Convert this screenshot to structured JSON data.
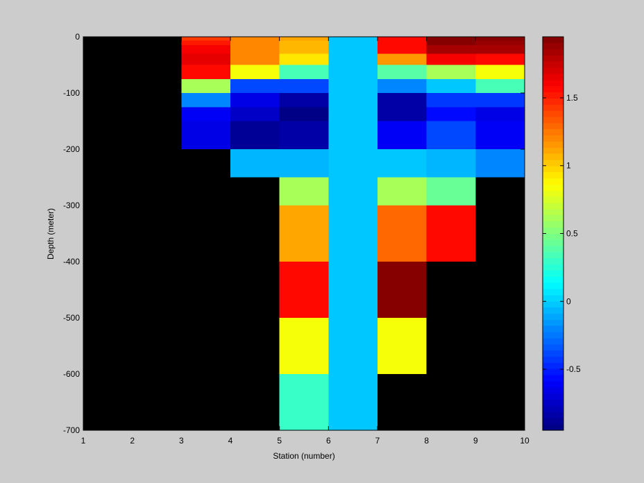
{
  "chart_data": {
    "type": "heatmap",
    "title": "",
    "xlabel": "Station (number)",
    "ylabel": "Depth (meter)",
    "xlim": [
      1,
      10
    ],
    "ylim": [
      -700,
      0
    ],
    "x_ticks": [
      1,
      2,
      3,
      4,
      5,
      6,
      7,
      8,
      9,
      10
    ],
    "y_ticks": [
      0,
      -100,
      -200,
      -300,
      -400,
      -500,
      -600,
      -700
    ],
    "background_no_data": "#000000",
    "colorbar": {
      "colormap": "jet",
      "clim": [
        -0.95,
        1.95
      ],
      "ticks": [
        -0.5,
        0,
        0.5,
        1,
        1.5
      ],
      "levels": 64
    },
    "cells": [
      {
        "x": [
          3,
          4
        ],
        "y": [
          0,
          -7
        ],
        "value": 1.45
      },
      {
        "x": [
          3,
          4
        ],
        "y": [
          -7,
          -15
        ],
        "value": 1.5
      },
      {
        "x": [
          3,
          4
        ],
        "y": [
          -15,
          -30
        ],
        "value": 1.6
      },
      {
        "x": [
          3,
          4
        ],
        "y": [
          -30,
          -50
        ],
        "value": 1.65
      },
      {
        "x": [
          3,
          4
        ],
        "y": [
          -50,
          -75
        ],
        "value": 1.55
      },
      {
        "x": [
          3,
          4
        ],
        "y": [
          -75,
          -100
        ],
        "value": 0.6
      },
      {
        "x": [
          3,
          4
        ],
        "y": [
          -100,
          -125
        ],
        "value": -0.2
      },
      {
        "x": [
          3,
          4
        ],
        "y": [
          -125,
          -150
        ],
        "value": -0.6
      },
      {
        "x": [
          3,
          4
        ],
        "y": [
          -150,
          -200
        ],
        "value": -0.65
      },
      {
        "x": [
          4,
          5
        ],
        "y": [
          0,
          -50
        ],
        "value": 1.2
      },
      {
        "x": [
          4,
          5
        ],
        "y": [
          -50,
          -75
        ],
        "value": 0.85
      },
      {
        "x": [
          4,
          5
        ],
        "y": [
          -75,
          -100
        ],
        "value": -0.4
      },
      {
        "x": [
          4,
          5
        ],
        "y": [
          -100,
          -125
        ],
        "value": -0.65
      },
      {
        "x": [
          4,
          5
        ],
        "y": [
          -125,
          -150
        ],
        "value": -0.75
      },
      {
        "x": [
          4,
          5
        ],
        "y": [
          -150,
          -200
        ],
        "value": -0.88
      },
      {
        "x": [
          4,
          5
        ],
        "y": [
          -200,
          -250
        ],
        "value": -0.05
      },
      {
        "x": [
          5,
          6
        ],
        "y": [
          0,
          -7
        ],
        "value": 1.1
      },
      {
        "x": [
          5,
          6
        ],
        "y": [
          -7,
          -15
        ],
        "value": 1.05
      },
      {
        "x": [
          5,
          6
        ],
        "y": [
          -15,
          -30
        ],
        "value": 1.05
      },
      {
        "x": [
          5,
          6
        ],
        "y": [
          -30,
          -50
        ],
        "value": 0.95
      },
      {
        "x": [
          5,
          6
        ],
        "y": [
          -50,
          -75
        ],
        "value": 0.35
      },
      {
        "x": [
          5,
          6
        ],
        "y": [
          -75,
          -100
        ],
        "value": -0.4
      },
      {
        "x": [
          5,
          6
        ],
        "y": [
          -100,
          -125
        ],
        "value": -0.83
      },
      {
        "x": [
          5,
          6
        ],
        "y": [
          -125,
          -150
        ],
        "value": -0.95
      },
      {
        "x": [
          5,
          6
        ],
        "y": [
          -150,
          -200
        ],
        "value": -0.85
      },
      {
        "x": [
          5,
          6
        ],
        "y": [
          -200,
          -250
        ],
        "value": -0.05
      },
      {
        "x": [
          5,
          6
        ],
        "y": [
          -250,
          -300
        ],
        "value": 0.6
      },
      {
        "x": [
          5,
          6
        ],
        "y": [
          -300,
          -400
        ],
        "value": 1.1
      },
      {
        "x": [
          5,
          6
        ],
        "y": [
          -400,
          -500
        ],
        "value": 1.55
      },
      {
        "x": [
          5,
          6
        ],
        "y": [
          -500,
          -600
        ],
        "value": 0.85
      },
      {
        "x": [
          5,
          6
        ],
        "y": [
          -600,
          -700
        ],
        "value": 0.3
      },
      {
        "x": [
          6,
          7
        ],
        "y": [
          0,
          -700
        ],
        "value": 0.0
      },
      {
        "x": [
          7,
          8
        ],
        "y": [
          0,
          -7
        ],
        "value": 1.55
      },
      {
        "x": [
          7,
          8
        ],
        "y": [
          -7,
          -15
        ],
        "value": 1.55
      },
      {
        "x": [
          7,
          8
        ],
        "y": [
          -15,
          -30
        ],
        "value": 1.55
      },
      {
        "x": [
          7,
          8
        ],
        "y": [
          -30,
          -50
        ],
        "value": 1.15
      },
      {
        "x": [
          7,
          8
        ],
        "y": [
          -50,
          -75
        ],
        "value": 0.4
      },
      {
        "x": [
          7,
          8
        ],
        "y": [
          -75,
          -100
        ],
        "value": -0.2
      },
      {
        "x": [
          7,
          8
        ],
        "y": [
          -100,
          -150
        ],
        "value": -0.82
      },
      {
        "x": [
          7,
          8
        ],
        "y": [
          -150,
          -200
        ],
        "value": -0.62
      },
      {
        "x": [
          7,
          8
        ],
        "y": [
          -200,
          -250
        ],
        "value": 0.0
      },
      {
        "x": [
          7,
          8
        ],
        "y": [
          -250,
          -300
        ],
        "value": 0.6
      },
      {
        "x": [
          7,
          8
        ],
        "y": [
          -300,
          -400
        ],
        "value": 1.3
      },
      {
        "x": [
          7,
          8
        ],
        "y": [
          -400,
          -500
        ],
        "value": 1.95
      },
      {
        "x": [
          7,
          8
        ],
        "y": [
          -500,
          -600
        ],
        "value": 0.85
      },
      {
        "x": [
          8,
          9
        ],
        "y": [
          0,
          -7
        ],
        "value": 1.95
      },
      {
        "x": [
          8,
          9
        ],
        "y": [
          -7,
          -15
        ],
        "value": 1.92
      },
      {
        "x": [
          8,
          9
        ],
        "y": [
          -15,
          -30
        ],
        "value": 1.85
      },
      {
        "x": [
          8,
          9
        ],
        "y": [
          -30,
          -50
        ],
        "value": 1.6
      },
      {
        "x": [
          8,
          9
        ],
        "y": [
          -50,
          -75
        ],
        "value": 0.6
      },
      {
        "x": [
          8,
          9
        ],
        "y": [
          -75,
          -100
        ],
        "value": 0.0
      },
      {
        "x": [
          8,
          9
        ],
        "y": [
          -100,
          -125
        ],
        "value": -0.45
      },
      {
        "x": [
          8,
          9
        ],
        "y": [
          -125,
          -150
        ],
        "value": -0.55
      },
      {
        "x": [
          8,
          9
        ],
        "y": [
          -150,
          -200
        ],
        "value": -0.4
      },
      {
        "x": [
          8,
          9
        ],
        "y": [
          -200,
          -250
        ],
        "value": -0.05
      },
      {
        "x": [
          8,
          9
        ],
        "y": [
          -250,
          -300
        ],
        "value": 0.45
      },
      {
        "x": [
          8,
          9
        ],
        "y": [
          -300,
          -400
        ],
        "value": 1.55
      },
      {
        "x": [
          9,
          10
        ],
        "y": [
          0,
          -7
        ],
        "value": 1.95
      },
      {
        "x": [
          9,
          10
        ],
        "y": [
          -7,
          -15
        ],
        "value": 1.9
      },
      {
        "x": [
          9,
          10
        ],
        "y": [
          -15,
          -30
        ],
        "value": 1.85
      },
      {
        "x": [
          9,
          10
        ],
        "y": [
          -30,
          -50
        ],
        "value": 1.55
      },
      {
        "x": [
          9,
          10
        ],
        "y": [
          -50,
          -75
        ],
        "value": 0.85
      },
      {
        "x": [
          9,
          10
        ],
        "y": [
          -75,
          -100
        ],
        "value": 0.35
      },
      {
        "x": [
          9,
          10
        ],
        "y": [
          -100,
          -125
        ],
        "value": -0.45
      },
      {
        "x": [
          9,
          10
        ],
        "y": [
          -125,
          -150
        ],
        "value": -0.65
      },
      {
        "x": [
          9,
          10
        ],
        "y": [
          -150,
          -200
        ],
        "value": -0.6
      },
      {
        "x": [
          9,
          10
        ],
        "y": [
          -200,
          -250
        ],
        "value": -0.2
      }
    ]
  }
}
